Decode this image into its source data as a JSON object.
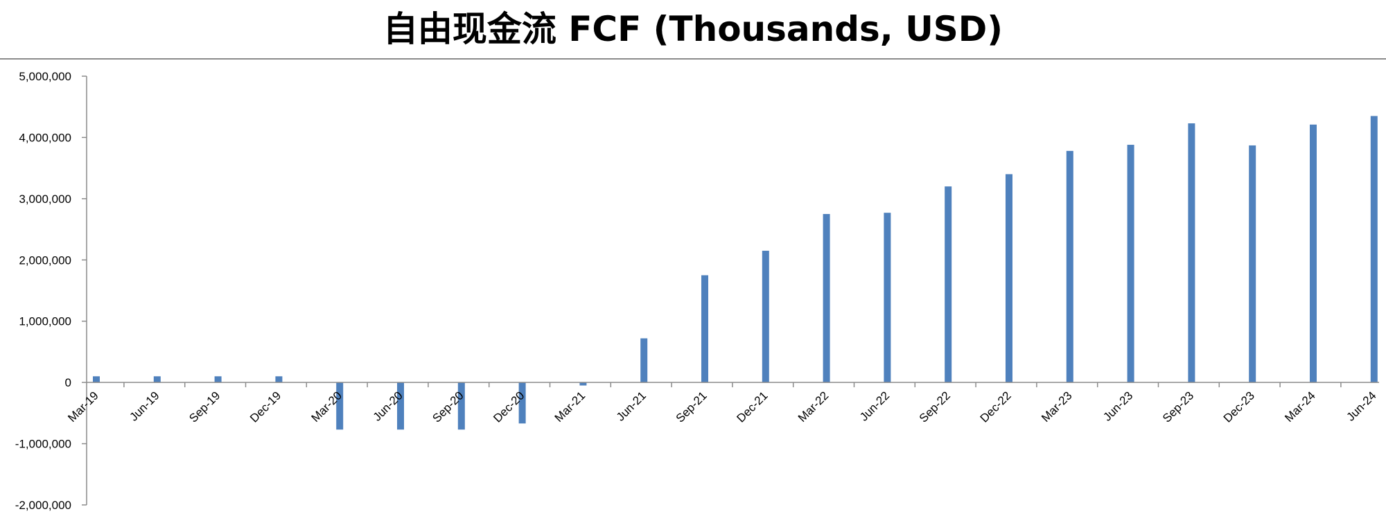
{
  "chart_data": {
    "type": "bar",
    "title": "自由现金流 FCF (Thousands, USD)",
    "categories": [
      "Mar-19",
      "Jun-19",
      "Sep-19",
      "Dec-19",
      "Mar-20",
      "Jun-20",
      "Sep-20",
      "Dec-20",
      "Mar-21",
      "Jun-21",
      "Sep-21",
      "Dec-21",
      "Mar-22",
      "Jun-22",
      "Sep-22",
      "Dec-22",
      "Mar-23",
      "Jun-23",
      "Sep-23",
      "Dec-23",
      "Mar-24",
      "Jun-24"
    ],
    "values": [
      100000,
      100000,
      100000,
      100000,
      -770000,
      -770000,
      -770000,
      -670000,
      -50000,
      720000,
      1750000,
      2150000,
      2750000,
      2770000,
      3200000,
      3400000,
      3780000,
      3880000,
      4230000,
      3870000,
      4210000,
      4350000
    ],
    "ylim": [
      -2000000,
      5000000
    ],
    "yticks": [
      5000000,
      4000000,
      3000000,
      2000000,
      1000000,
      0,
      -1000000,
      -2000000
    ],
    "ytick_labels": [
      "5,000,000",
      "4,000,000",
      "3,000,000",
      "2,000,000",
      "1,000,000",
      "0",
      "-1,000,000",
      "-2,000,000"
    ],
    "xlabel": "",
    "ylabel": "",
    "grid": false,
    "legend": "none",
    "bar_color": "#4F81BD"
  }
}
